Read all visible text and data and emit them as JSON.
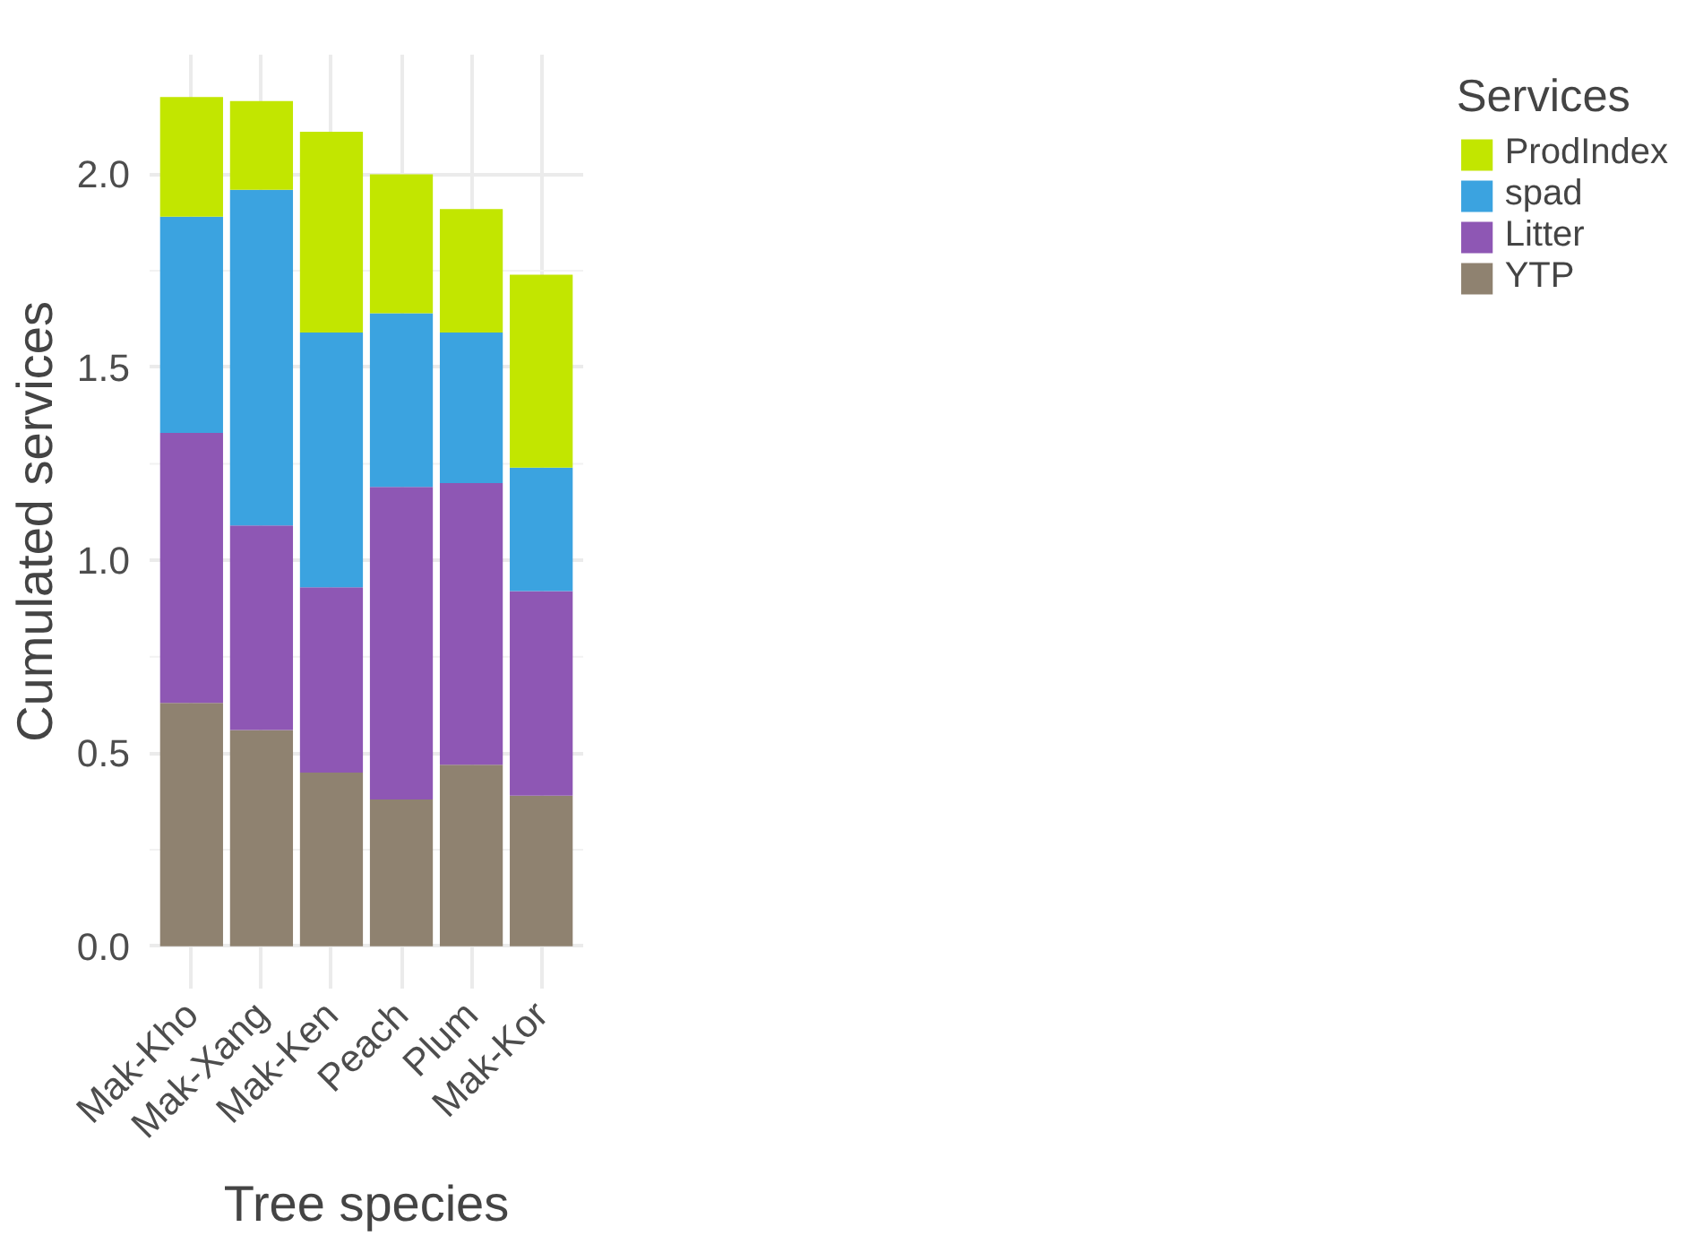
{
  "chart_data": {
    "type": "bar",
    "stacked": true,
    "xlabel": "Tree species",
    "ylabel": "Cumulated services",
    "legend_title": "Services",
    "categories": [
      "Mak-Kho",
      "Mak-Xang",
      "Mak-Ken",
      "Peach",
      "Plum",
      "Mak-Kor"
    ],
    "series": [
      {
        "name": "YTP",
        "color": "#8f8270",
        "values": [
          0.63,
          0.56,
          0.45,
          0.38,
          0.47,
          0.39
        ]
      },
      {
        "name": "Litter",
        "color": "#8e57b4",
        "values": [
          0.7,
          0.53,
          0.48,
          0.81,
          0.73,
          0.53
        ]
      },
      {
        "name": "spad",
        "color": "#3ba3e0",
        "values": [
          0.56,
          0.87,
          0.66,
          0.45,
          0.39,
          0.32
        ]
      },
      {
        "name": "ProdIndex",
        "color": "#c2e600",
        "values": [
          0.31,
          0.23,
          0.52,
          0.36,
          0.32,
          0.5
        ]
      }
    ],
    "ylim": [
      -0.11,
      2.31
    ],
    "yticks": [
      {
        "value": 0,
        "label": "0.0"
      },
      {
        "value": 0.5,
        "label": "0.5"
      },
      {
        "value": 1,
        "label": "1.0"
      },
      {
        "value": 1.5,
        "label": "1.5"
      },
      {
        "value": 2,
        "label": "2.0"
      }
    ],
    "grid": true,
    "legend": "right"
  }
}
